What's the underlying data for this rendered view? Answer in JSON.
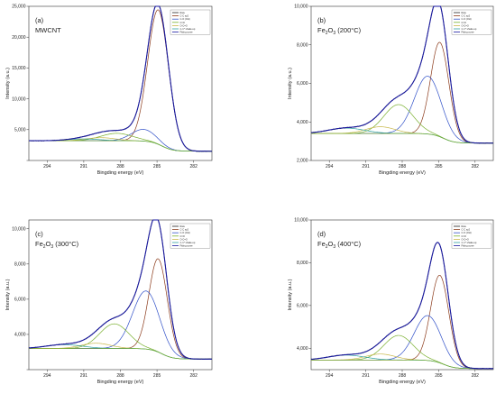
{
  "chart_data": [
    {
      "type": "line",
      "panel_label": "(a)",
      "sample": {
        "name": "MWCNT",
        "sub": "",
        "rest": ""
      },
      "xlabel": "Bingding energy (eV)",
      "ylabel": "Intensity (a.u.)",
      "xlim": [
        295.5,
        280.5
      ],
      "ylim": [
        0,
        25000
      ],
      "xticks": [
        "294",
        "291",
        "288",
        "285",
        "282"
      ],
      "xtick_values": [
        294,
        291,
        288,
        285,
        282
      ],
      "yticks": [
        "",
        "5,000",
        "10,000",
        "15,000",
        "20,000",
        "25,000"
      ],
      "ytick_values": [
        0,
        5000,
        10000,
        15000,
        20000,
        25000
      ],
      "legend": [
        "Raw",
        "C-C sp2",
        "C-O (OH)",
        "C=O",
        "O-C=O",
        "π-π* shake-up",
        "Fitting curve"
      ],
      "legend_colors": [
        "#222222",
        "#8b3a1a",
        "#3050c8",
        "#7ab030",
        "#c8b84a",
        "#2ca0a0",
        "#1a1aa0"
      ],
      "background": 3200,
      "end_level": 1500,
      "peaks": [
        {
          "name": "C-C sp2",
          "center": 284.9,
          "height": 21800,
          "width": 0.85,
          "color": "#8b3a1a"
        },
        {
          "name": "C-O (OH)",
          "center": 286.1,
          "height": 1900,
          "width": 1.0,
          "color": "#3050c8"
        },
        {
          "name": "C=O",
          "center": 288.3,
          "height": 1200,
          "width": 1.3,
          "color": "#7ab030"
        },
        {
          "name": "O-C=O",
          "center": 289.6,
          "height": 500,
          "width": 1.2,
          "color": "#c8b84a"
        },
        {
          "name": "π-π* shake-up",
          "center": 291.0,
          "height": 300,
          "width": 1.3,
          "color": "#2ca0a0"
        }
      ]
    },
    {
      "type": "line",
      "panel_label": "(b)",
      "sample": {
        "name": "Fe",
        "sub": "2",
        "rest": "O",
        "sub2": "3",
        "tail": " (200°C)"
      },
      "xlabel": "Bingding energy (eV)",
      "ylabel": "Intensity (a.u.)",
      "xlim": [
        295.5,
        280.5
      ],
      "ylim": [
        2000,
        10000
      ],
      "xticks": [
        "294",
        "291",
        "288",
        "285",
        "282"
      ],
      "xtick_values": [
        294,
        291,
        288,
        285,
        282
      ],
      "yticks": [
        "2,000",
        "4,000",
        "6,000",
        "8,000",
        "10,000"
      ],
      "ytick_values": [
        2000,
        4000,
        6000,
        8000,
        10000
      ],
      "legend": [
        "Raw",
        "C-C sp2",
        "C-O (OH)",
        "C=O",
        "O-C=O",
        "π-π* shake-up",
        "Fitting curve"
      ],
      "legend_colors": [
        "#222222",
        "#8b3a1a",
        "#3050c8",
        "#7ab030",
        "#c8b84a",
        "#2ca0a0",
        "#1a1aa0"
      ],
      "background": 3400,
      "end_level": 2900,
      "peaks": [
        {
          "name": "C-C sp2",
          "center": 284.9,
          "height": 4900,
          "width": 0.75,
          "color": "#8b3a1a"
        },
        {
          "name": "C-O (OH)",
          "center": 285.9,
          "height": 3000,
          "width": 1.1,
          "color": "#3050c8"
        },
        {
          "name": "C=O",
          "center": 288.3,
          "height": 1500,
          "width": 1.2,
          "color": "#7ab030"
        },
        {
          "name": "O-C=O",
          "center": 289.8,
          "height": 350,
          "width": 1.2,
          "color": "#c8b84a"
        },
        {
          "name": "π-π* shake-up",
          "center": 292.6,
          "height": 280,
          "width": 1.5,
          "color": "#2ca0a0"
        }
      ]
    },
    {
      "type": "line",
      "panel_label": "(c)",
      "sample": {
        "name": "Fe",
        "sub": "2",
        "rest": "O",
        "sub2": "3",
        "tail": " (300°C)"
      },
      "xlabel": "Bingding energy (eV)",
      "ylabel": "Intensity (a.u.)",
      "xlim": [
        295.5,
        280.5
      ],
      "ylim": [
        2000,
        10500
      ],
      "xticks": [
        "294",
        "291",
        "288",
        "285",
        "282"
      ],
      "xtick_values": [
        294,
        291,
        288,
        285,
        282
      ],
      "yticks": [
        "",
        "4,000",
        "6,000",
        "8,000",
        "10,000"
      ],
      "ytick_values": [
        2000,
        4000,
        6000,
        8000,
        10000
      ],
      "legend": [
        "Raw",
        "C-C sp2",
        "C-O (OH)",
        "C=O",
        "O-C=O",
        "π-π* shake-up",
        "Fitting curve"
      ],
      "legend_colors": [
        "#222222",
        "#8b3a1a",
        "#3050c8",
        "#7ab030",
        "#c8b84a",
        "#2ca0a0",
        "#1a1aa0"
      ],
      "background": 3200,
      "end_level": 2600,
      "peaks": [
        {
          "name": "C-C sp2",
          "center": 284.9,
          "height": 5300,
          "width": 0.75,
          "color": "#8b3a1a"
        },
        {
          "name": "C-O (OH)",
          "center": 285.9,
          "height": 3300,
          "width": 1.1,
          "color": "#3050c8"
        },
        {
          "name": "C=O",
          "center": 288.5,
          "height": 1400,
          "width": 1.2,
          "color": "#7ab030"
        },
        {
          "name": "O-C=O",
          "center": 290.0,
          "height": 300,
          "width": 1.2,
          "color": "#c8b84a"
        },
        {
          "name": "π-π* shake-up",
          "center": 292.6,
          "height": 220,
          "width": 1.5,
          "color": "#2ca0a0"
        }
      ]
    },
    {
      "type": "line",
      "panel_label": "(d)",
      "sample": {
        "name": "Fe",
        "sub": "2",
        "rest": "O",
        "sub2": "3",
        "tail": " (400°C)"
      },
      "xlabel": "Bingding energy (eV)",
      "ylabel": "Intensity (a.u.)",
      "xlim": [
        295.5,
        280.5
      ],
      "ylim": [
        3000,
        10000
      ],
      "xticks": [
        "294",
        "291",
        "288",
        "285",
        "282"
      ],
      "xtick_values": [
        294,
        291,
        288,
        285,
        282
      ],
      "yticks": [
        "4,000",
        "6,000",
        "8,000",
        "10,000"
      ],
      "ytick_values": [
        4000,
        6000,
        8000,
        10000
      ],
      "legend": [
        "Raw",
        "C-C sp2",
        "C-O (OH)",
        "C=O",
        "O-C=O",
        "π-π* shake-up",
        "Fitting curve"
      ],
      "legend_colors": [
        "#222222",
        "#8b3a1a",
        "#3050c8",
        "#7ab030",
        "#c8b84a",
        "#2ca0a0",
        "#1a1aa0"
      ],
      "background": 3450,
      "end_level": 3050,
      "peaks": [
        {
          "name": "C-C sp2",
          "center": 284.9,
          "height": 4100,
          "width": 0.75,
          "color": "#8b3a1a"
        },
        {
          "name": "C-O (OH)",
          "center": 285.9,
          "height": 2100,
          "width": 1.1,
          "color": "#3050c8"
        },
        {
          "name": "C=O",
          "center": 288.3,
          "height": 1150,
          "width": 1.2,
          "color": "#7ab030"
        },
        {
          "name": "O-C=O",
          "center": 289.8,
          "height": 280,
          "width": 1.2,
          "color": "#c8b84a"
        },
        {
          "name": "π-π* shake-up",
          "center": 292.6,
          "height": 230,
          "width": 1.5,
          "color": "#2ca0a0"
        }
      ]
    }
  ]
}
